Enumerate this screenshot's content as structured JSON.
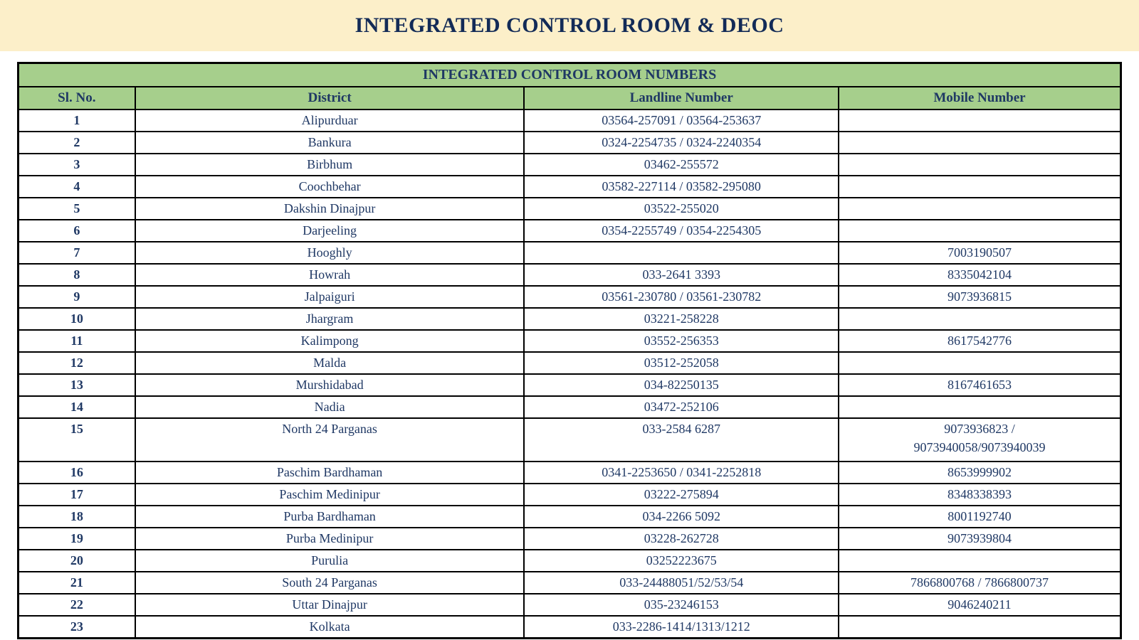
{
  "page": {
    "banner_title": "INTEGRATED CONTROL ROOM & DEOC",
    "colors": {
      "banner_background": "#FCEFC9",
      "header_background": "#A6CF8C",
      "text_navy": "#1F3864",
      "border_black": "#000000"
    }
  },
  "table": {
    "title": "INTEGRATED CONTROL ROOM NUMBERS",
    "columns": [
      "Sl. No.",
      "District",
      "Landline Number",
      "Mobile Number"
    ],
    "rows": [
      {
        "sl": "1",
        "district": "Alipurduar",
        "landline": "03564-257091 / 03564-253637",
        "mobile": ""
      },
      {
        "sl": "2",
        "district": "Bankura",
        "landline": "0324-2254735 / 0324-2240354",
        "mobile": ""
      },
      {
        "sl": "3",
        "district": "Birbhum",
        "landline": "03462-255572",
        "mobile": ""
      },
      {
        "sl": "4",
        "district": "Coochbehar",
        "landline": "03582-227114 / 03582-295080",
        "mobile": ""
      },
      {
        "sl": "5",
        "district": "Dakshin Dinajpur",
        "landline": "03522-255020",
        "mobile": ""
      },
      {
        "sl": "6",
        "district": "Darjeeling",
        "landline": "0354-2255749 / 0354-2254305",
        "mobile": ""
      },
      {
        "sl": "7",
        "district": "Hooghly",
        "landline": "",
        "mobile": "7003190507"
      },
      {
        "sl": "8",
        "district": "Howrah",
        "landline": "033-2641 3393",
        "mobile": "8335042104"
      },
      {
        "sl": "9",
        "district": "Jalpaiguri",
        "landline": "03561-230780 / 03561-230782",
        "mobile": "9073936815"
      },
      {
        "sl": "10",
        "district": "Jhargram",
        "landline": "03221-258228",
        "mobile": ""
      },
      {
        "sl": "11",
        "district": "Kalimpong",
        "landline": "03552-256353",
        "mobile": "8617542776"
      },
      {
        "sl": "12",
        "district": "Malda",
        "landline": "03512-252058",
        "mobile": ""
      },
      {
        "sl": "13",
        "district": "Murshidabad",
        "landline": "034-82250135",
        "mobile": "8167461653"
      },
      {
        "sl": "14",
        "district": "Nadia",
        "landline": "03472-252106",
        "mobile": ""
      },
      {
        "sl": "15",
        "district": "North 24 Parganas",
        "landline": "033-2584 6287",
        "mobile": "9073936823 /\n9073940058/9073940039",
        "tall": true
      },
      {
        "sl": "16",
        "district": "Paschim Bardhaman",
        "landline": "0341-2253650 / 0341-2252818",
        "mobile": "8653999902"
      },
      {
        "sl": "17",
        "district": "Paschim Medinipur",
        "landline": "03222-275894",
        "mobile": "8348338393"
      },
      {
        "sl": "18",
        "district": "Purba Bardhaman",
        "landline": "034-2266 5092",
        "mobile": "8001192740"
      },
      {
        "sl": "19",
        "district": "Purba Medinipur",
        "landline": "03228-262728",
        "mobile": "9073939804"
      },
      {
        "sl": "20",
        "district": "Purulia",
        "landline": "03252223675",
        "mobile": ""
      },
      {
        "sl": "21",
        "district": "South 24 Parganas",
        "landline": "033-24488051/52/53/54",
        "mobile": "7866800768 / 7866800737"
      },
      {
        "sl": "22",
        "district": "Uttar Dinajpur",
        "landline": "035-23246153",
        "mobile": "9046240211"
      },
      {
        "sl": "23",
        "district": "Kolkata",
        "landline": "033-2286-1414/1313/1212",
        "mobile": ""
      }
    ]
  }
}
